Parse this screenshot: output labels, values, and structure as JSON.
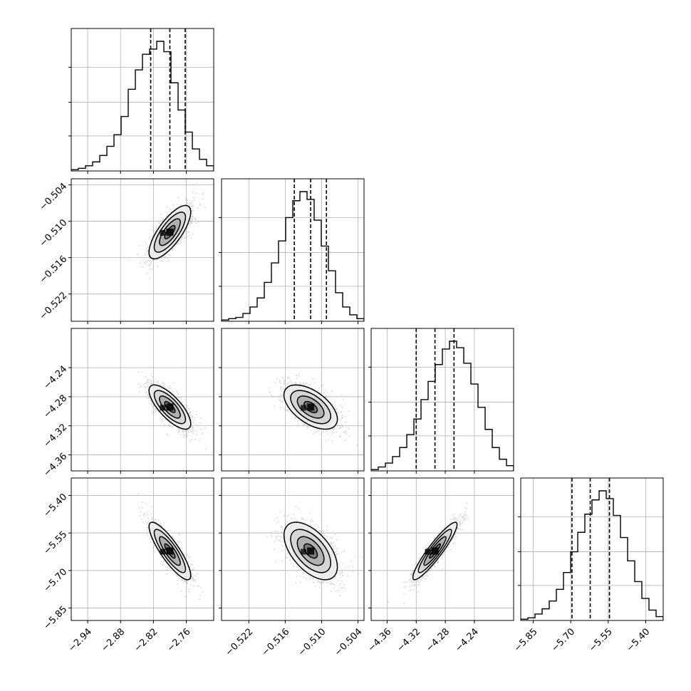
{
  "chart_data": {
    "type": "corner",
    "parameters": 4,
    "grid": true,
    "quantile_lines": "dashed",
    "axes": {
      "0": {
        "lim": [
          -2.97,
          -2.71
        ],
        "ticks": [
          -2.94,
          -2.88,
          -2.82,
          -2.76
        ],
        "tick_labels": [
          "−2.94",
          "−2.88",
          "−2.82",
          "−2.76"
        ],
        "quantiles": [
          -2.825,
          -2.79,
          -2.762
        ]
      },
      "1": {
        "lim": [
          -0.5265,
          -0.503
        ],
        "ticks": [
          -0.522,
          -0.516,
          -0.51,
          -0.504
        ],
        "tick_labels": [
          "−0.522",
          "−0.516",
          "−0.510",
          "−0.504"
        ],
        "quantiles": [
          -0.5145,
          -0.5118,
          -0.5092
        ]
      },
      "2": {
        "lim": [
          -4.382,
          -4.186
        ],
        "ticks": [
          -4.36,
          -4.32,
          -4.28,
          -4.24
        ],
        "tick_labels": [
          "−4.36",
          "−4.32",
          "−4.28",
          "−4.24"
        ],
        "quantiles": [
          -4.32,
          -4.2942,
          -4.268
        ]
      },
      "3": {
        "lim": [
          -5.9,
          -5.33
        ],
        "ticks": [
          -5.85,
          -5.7,
          -5.55,
          -5.4
        ],
        "tick_labels": [
          "−5.85",
          "−5.70",
          "−5.55",
          "−5.40"
        ],
        "quantiles": [
          -5.695,
          -5.622,
          -5.545
        ]
      }
    },
    "histograms": {
      "0": [
        0.01,
        0.02,
        0.04,
        0.07,
        0.12,
        0.19,
        0.28,
        0.42,
        0.63,
        0.78,
        0.9,
        0.94,
        1.0,
        0.92,
        0.68,
        0.47,
        0.3,
        0.17,
        0.09,
        0.04
      ],
      "1": [
        0.01,
        0.02,
        0.03,
        0.06,
        0.11,
        0.18,
        0.3,
        0.45,
        0.62,
        0.8,
        0.93,
        1.0,
        0.94,
        0.78,
        0.58,
        0.39,
        0.22,
        0.11,
        0.05,
        0.02
      ],
      "2": [
        0.01,
        0.03,
        0.06,
        0.11,
        0.18,
        0.28,
        0.4,
        0.55,
        0.69,
        0.82,
        0.94,
        1.0,
        0.95,
        0.83,
        0.67,
        0.49,
        0.32,
        0.18,
        0.09,
        0.04
      ],
      "3": [
        0.01,
        0.02,
        0.05,
        0.09,
        0.15,
        0.24,
        0.37,
        0.53,
        0.68,
        0.82,
        0.93,
        1.0,
        0.94,
        0.81,
        0.64,
        0.46,
        0.3,
        0.17,
        0.08,
        0.03
      ]
    },
    "covariance": {
      "means": [
        -2.79,
        -0.5118,
        -4.2942,
        -5.622
      ],
      "sds": [
        0.019,
        0.0022,
        0.0152,
        0.0575
      ],
      "corr": [
        [
          1.0,
          0.75,
          -0.75,
          -0.85
        ],
        [
          0.75,
          1.0,
          -0.55,
          -0.55
        ],
        [
          -0.75,
          -0.55,
          1.0,
          0.92
        ],
        [
          -0.85,
          -0.55,
          0.92,
          1.0
        ]
      ]
    },
    "contour_levels_sigma": [
      0.5,
      1.0,
      1.5,
      2.0
    ]
  }
}
